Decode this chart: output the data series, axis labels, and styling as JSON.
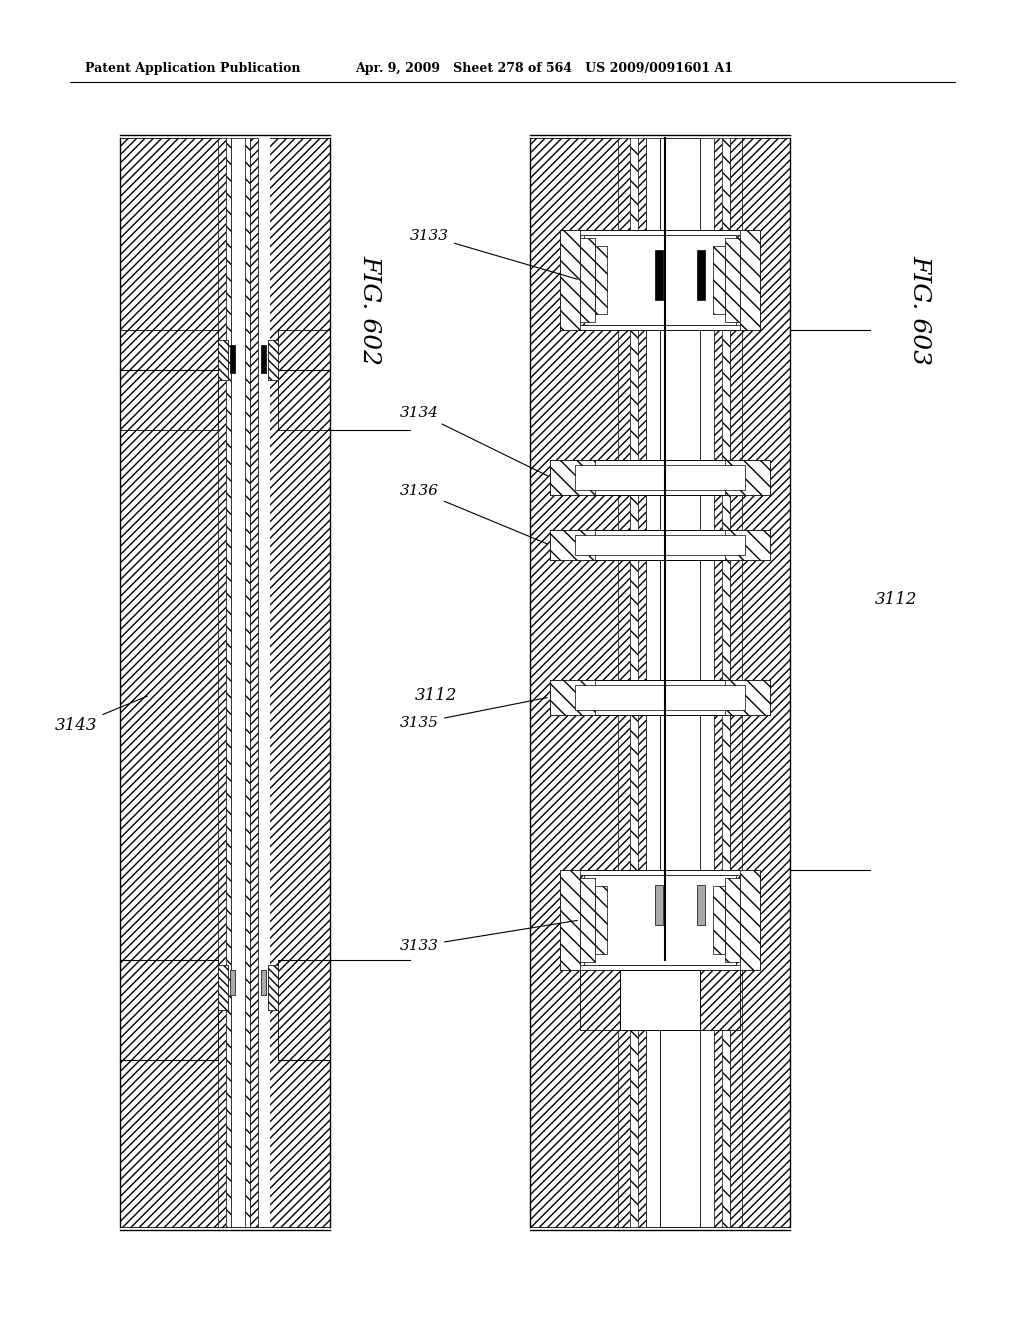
{
  "header_left": "Patent Application Publication",
  "header_mid": "Apr. 9, 2009   Sheet 278 of 564   US 2009/0091601 A1",
  "fig602_label": "FIG. 602",
  "fig603_label": "FIG. 603",
  "label_3112_left": "3112",
  "label_3112_right": "3112",
  "label_3143": "3143",
  "label_3133a": "3133",
  "label_3133b": "3133",
  "label_3134": "3134",
  "label_3135": "3135",
  "label_3136": "3136",
  "bg_color": "#ffffff",
  "line_color": "#000000"
}
